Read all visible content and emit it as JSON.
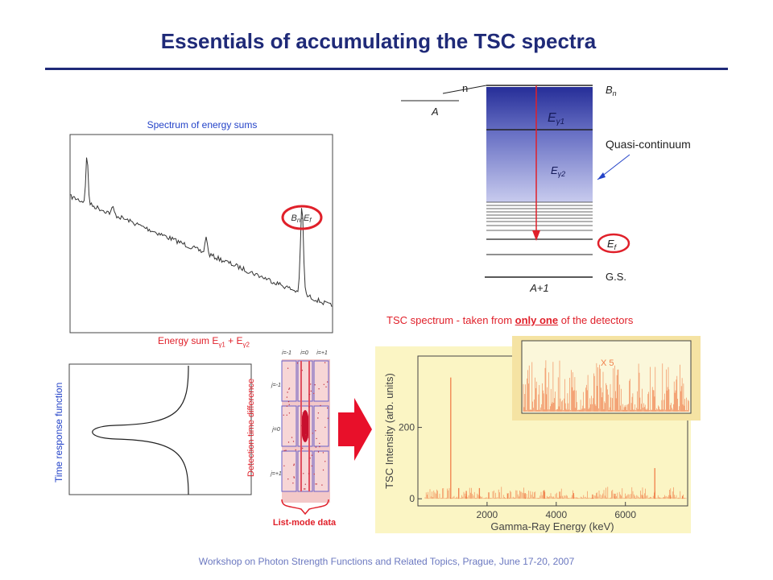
{
  "title": "Essentials of accumulating the TSC spectra",
  "footer": "Workshop on Photon Strength Functions and Related Topics, Prague,  June 17-20, 2007",
  "energy_sum": {
    "caption": "Spectrum of energy sums",
    "peak_label": "Bn-Ef",
    "peak_label_main": "B",
    "peak_label_sub1": "n",
    "peak_label_mid": "-E",
    "peak_label_sub2": "f",
    "xlabel_main": "Energy sum E",
    "xlabel_sub1": "γ1",
    "xlabel_mid": " + E",
    "xlabel_sub2": "γ2"
  },
  "time_response": {
    "ylabel": "Time response function",
    "detection_label": "Detection-time difference",
    "col_labels": [
      "i=-1",
      "i=0",
      "i=+1"
    ],
    "row_labels": [
      "j=-1",
      "j=0",
      "j=+1"
    ],
    "listmode_label": "List-mode data"
  },
  "level_scheme": {
    "n_label": "n",
    "A_label": "A",
    "Bn_main": "B",
    "Bn_sub": "n",
    "Eg1_main": "E",
    "Eg1_sub": "γ1",
    "Eg2_main": "E",
    "Eg2_sub": "γ2",
    "quasi_label": "Quasi-continuum",
    "Ef_main": "E",
    "Ef_sub": "f",
    "gs_label": "G.S.",
    "A1_label": "A+1"
  },
  "tsc": {
    "caption_pre": "TSC spectrum - taken from ",
    "caption_emph": "only one",
    "caption_post": " of the detectors",
    "ylabel": "TSC Intensity (arb. units)",
    "xlabel": "Gamma-Ray Energy (keV)",
    "inset_label": "X 5",
    "colors": {
      "spectrum": "#f07f4a",
      "panel": "#fbf5c4",
      "inset": "#f5e3a3"
    }
  },
  "chart_data": {
    "type": "line",
    "title": "",
    "xlabel": "Gamma-Ray Energy (keV)",
    "ylabel": "TSC Intensity (arb. units)",
    "xlim": [
      0,
      7800
    ],
    "ylim": [
      -20,
      400
    ],
    "x_ticks": [
      2000,
      4000,
      6000
    ],
    "y_ticks": [
      0,
      200
    ],
    "series": [
      {
        "x": [
          950,
          1180,
          1400,
          1780,
          2050,
          2600,
          3100,
          3650,
          4100,
          4500,
          5050,
          5700,
          6500,
          6850,
          7300,
          7650
        ],
        "values": [
          340,
          30,
          22,
          30,
          18,
          14,
          16,
          24,
          20,
          16,
          12,
          14,
          10,
          86,
          10,
          8
        ]
      }
    ],
    "legend": "none"
  }
}
